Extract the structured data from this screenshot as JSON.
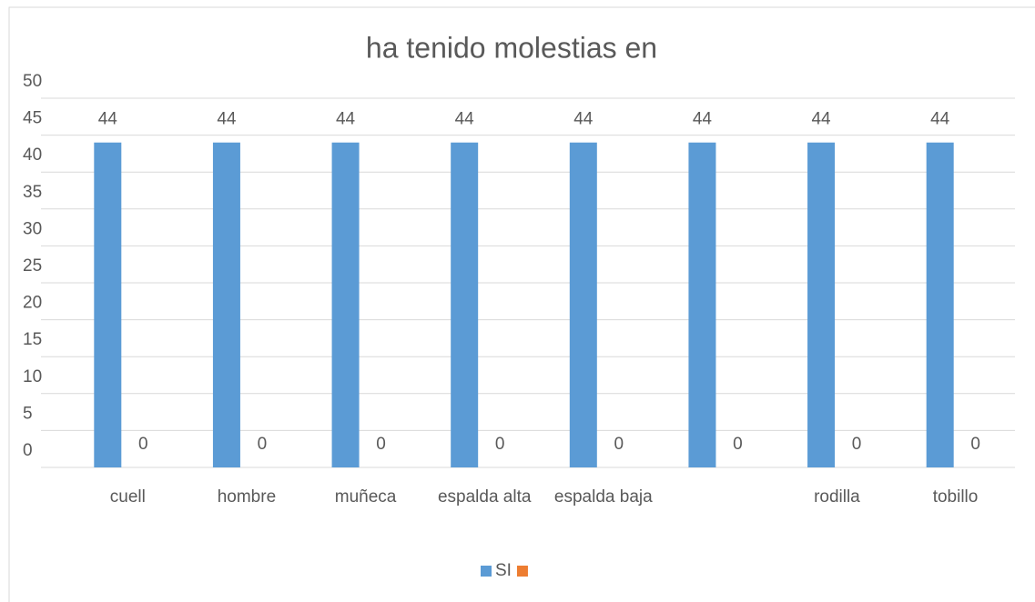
{
  "chart_data": {
    "type": "bar",
    "title": "ha tenido molestias en",
    "categories": [
      "cuell",
      "hombre",
      "muñeca",
      "espalda alta",
      "espalda baja",
      null,
      "rodilla",
      "tobillo"
    ],
    "series": [
      {
        "name": "SI",
        "color": "#5b9bd5",
        "values": [
          44,
          44,
          44,
          44,
          44,
          44,
          44,
          44
        ]
      },
      {
        "color": "#ed7d31",
        "values": [
          0,
          0,
          0,
          0,
          0,
          0,
          0,
          0
        ]
      }
    ],
    "ylim": [
      0,
      50
    ],
    "yticks": [
      0,
      5,
      10,
      15,
      20,
      25,
      30,
      35,
      40,
      45,
      50
    ],
    "grid": true,
    "legend": "bottom"
  }
}
